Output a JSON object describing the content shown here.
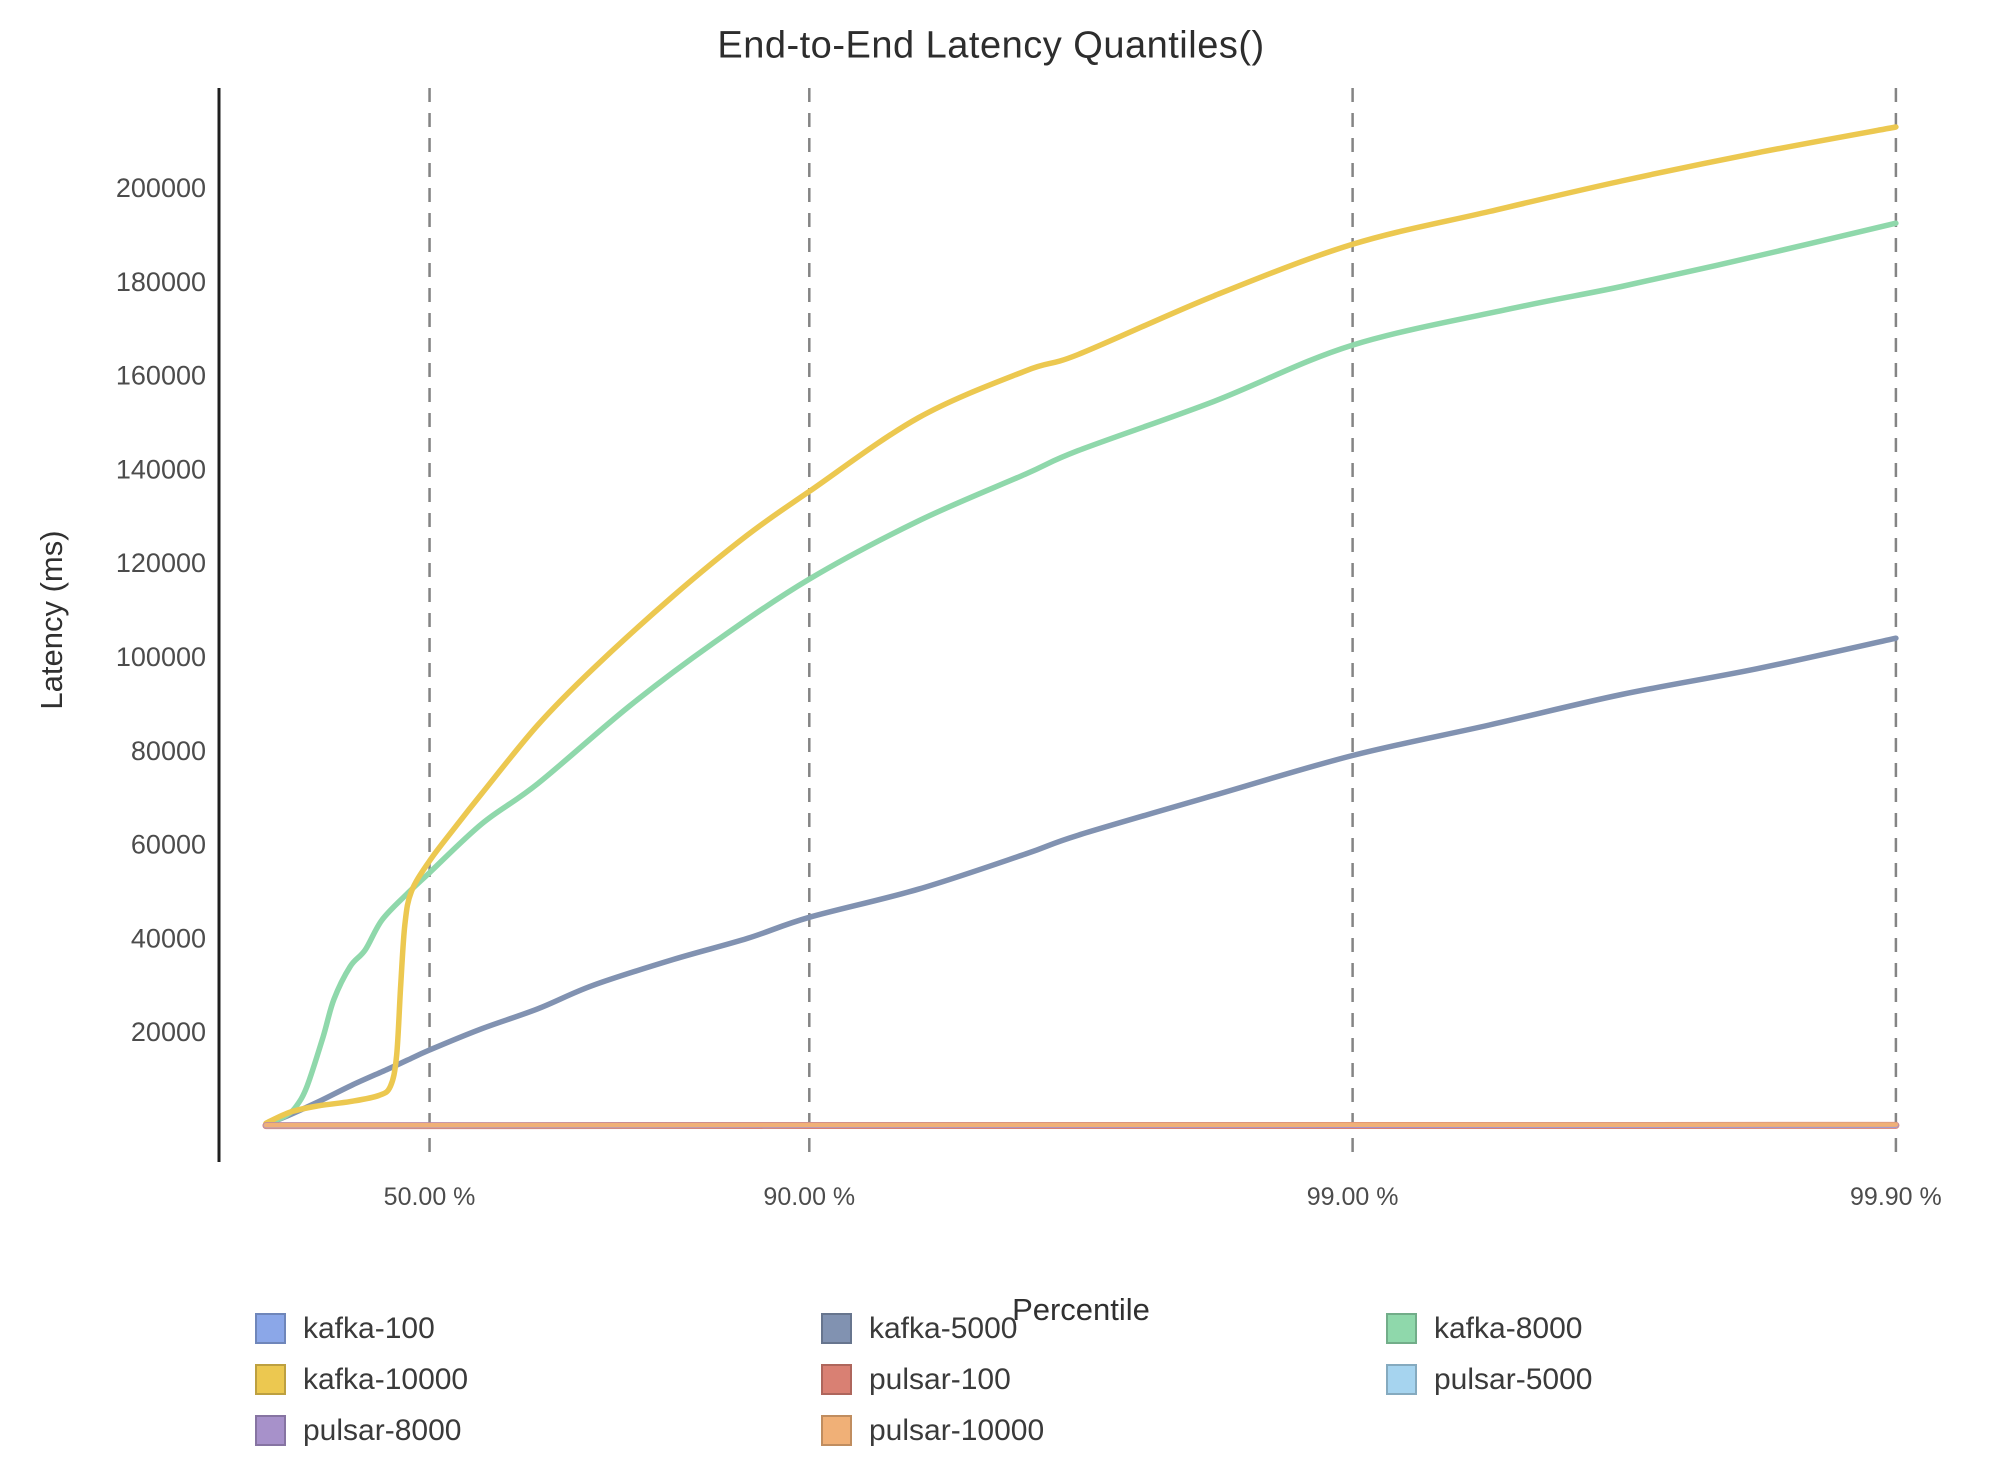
{
  "chart_data": {
    "type": "line",
    "title": "End-to-End Latency Quantiles()",
    "xlabel": "Percentile",
    "ylabel": "Latency (ms)",
    "x_scale": "log10(1/(1-p)) percentile axis",
    "grid": "vertical dashed gridlines at x ticks only",
    "legend_position": "bottom",
    "ylim": [
      0,
      221000
    ],
    "y_ticks": [
      20000,
      40000,
      60000,
      80000,
      100000,
      120000,
      140000,
      160000,
      180000,
      200000
    ],
    "x_ticks": [
      {
        "percentile": 50,
        "label": "50.00 %"
      },
      {
        "percentile": 90,
        "label": "90.00 %"
      },
      {
        "percentile": 99,
        "label": "99.00 %"
      },
      {
        "percentile": 99.9,
        "label": "99.90 %"
      }
    ],
    "series": [
      {
        "name": "kafka-100",
        "color": "#8ba7e8",
        "points": [
          [
            0,
            100
          ],
          [
            20,
            100
          ],
          [
            50,
            100
          ],
          [
            90,
            100
          ],
          [
            99,
            100
          ],
          [
            99.9,
            100
          ]
        ]
      },
      {
        "name": "kafka-5000",
        "color": "#8192b1",
        "points": [
          [
            0,
            300
          ],
          [
            10,
            2500
          ],
          [
            20,
            5200
          ],
          [
            30.5,
            8700
          ],
          [
            40,
            12000
          ],
          [
            45,
            14000
          ],
          [
            50,
            16200
          ],
          [
            59.6,
            20600
          ],
          [
            68.4,
            25000
          ],
          [
            75,
            30000
          ],
          [
            82.2,
            35500
          ],
          [
            87,
            40000
          ],
          [
            90,
            44500
          ],
          [
            93.7,
            50500
          ],
          [
            96,
            58000
          ],
          [
            96.8,
            62000
          ],
          [
            98.2,
            70500
          ],
          [
            99,
            79000
          ],
          [
            99.44,
            85500
          ],
          [
            99.68,
            92000
          ],
          [
            99.82,
            97500
          ],
          [
            99.9,
            104000
          ]
        ]
      },
      {
        "name": "kafka-8000",
        "color": "#8fd8ab",
        "points": [
          [
            0,
            400
          ],
          [
            8,
            2200
          ],
          [
            12,
            4200
          ],
          [
            16,
            8500
          ],
          [
            21.5,
            19000
          ],
          [
            25,
            27000
          ],
          [
            30,
            34000
          ],
          [
            34.3,
            37500
          ],
          [
            38.8,
            43900
          ],
          [
            45,
            49500
          ],
          [
            50,
            54000
          ],
          [
            60,
            64500
          ],
          [
            68.4,
            73000
          ],
          [
            78.6,
            89600
          ],
          [
            85,
            103000
          ],
          [
            90,
            116600
          ],
          [
            93.7,
            129000
          ],
          [
            96,
            139000
          ],
          [
            96.8,
            144000
          ],
          [
            98.2,
            154500
          ],
          [
            99,
            166500
          ],
          [
            99.5,
            174500
          ],
          [
            99.68,
            179000
          ],
          [
            99.82,
            185500
          ],
          [
            99.9,
            192500
          ]
        ]
      },
      {
        "name": "kafka-10000",
        "color": "#ecc850",
        "points": [
          [
            0,
            600
          ],
          [
            10,
            3000
          ],
          [
            20,
            4300
          ],
          [
            30,
            5200
          ],
          [
            38,
            6500
          ],
          [
            41,
            8500
          ],
          [
            42.5,
            15000
          ],
          [
            43.5,
            30000
          ],
          [
            44.5,
            43000
          ],
          [
            46,
            50000
          ],
          [
            50,
            56500
          ],
          [
            55,
            63500
          ],
          [
            60,
            71000
          ],
          [
            68.4,
            85500
          ],
          [
            75,
            97500
          ],
          [
            82.2,
            113000
          ],
          [
            87,
            126000
          ],
          [
            90,
            135300
          ],
          [
            93.7,
            151000
          ],
          [
            96,
            161000
          ],
          [
            96.8,
            164500
          ],
          [
            98.2,
            177000
          ],
          [
            99,
            188000
          ],
          [
            99.44,
            195000
          ],
          [
            99.68,
            201500
          ],
          [
            99.82,
            207500
          ],
          [
            99.9,
            213000
          ]
        ]
      },
      {
        "name": "pulsar-100",
        "color": "#d98073",
        "points": [
          [
            0,
            80
          ],
          [
            20,
            90
          ],
          [
            50,
            95
          ],
          [
            90,
            100
          ],
          [
            99,
            110
          ],
          [
            99.9,
            120
          ]
        ]
      },
      {
        "name": "pulsar-5000",
        "color": "#a6d4ef",
        "points": [
          [
            0,
            100
          ],
          [
            20,
            110
          ],
          [
            50,
            120
          ],
          [
            90,
            140
          ],
          [
            99,
            160
          ],
          [
            99.9,
            180
          ]
        ]
      },
      {
        "name": "pulsar-8000",
        "color": "#a791ca",
        "points": [
          [
            0,
            120
          ],
          [
            20,
            130
          ],
          [
            50,
            140
          ],
          [
            90,
            160
          ],
          [
            99,
            180
          ],
          [
            99.9,
            200
          ]
        ]
      },
      {
        "name": "pulsar-10000",
        "color": "#f0b077",
        "points": [
          [
            0,
            150
          ],
          [
            20,
            165
          ],
          [
            50,
            180
          ],
          [
            90,
            220
          ],
          [
            99,
            260
          ],
          [
            99.9,
            300
          ]
        ]
      }
    ]
  }
}
